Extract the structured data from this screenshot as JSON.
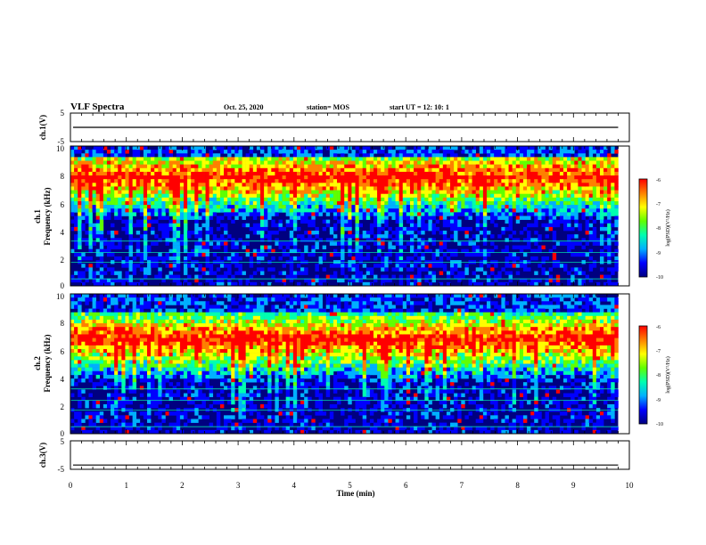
{
  "header": {
    "title": "VLF Spectra",
    "date": "Oct. 25, 2020",
    "station": "station= MOS",
    "start": "start  UT  =   12: 10: 1"
  },
  "chart_data": [
    {
      "type": "line",
      "ylabel": "ch.1(V)",
      "ylim": [
        -5,
        5
      ],
      "yticks": [
        "5",
        "-5"
      ],
      "x": [
        0,
        9.8
      ],
      "values": [
        0,
        0
      ]
    },
    {
      "type": "heatmap",
      "ylabel_line1": "ch.1",
      "ylabel_line2": "Frequency (kHz)",
      "ylim": [
        0,
        10
      ],
      "yticks": [
        "0",
        "2",
        "4",
        "6",
        "8",
        "10"
      ],
      "xlim": [
        0,
        9.8
      ],
      "colorbar": {
        "label": "log(PSD)(V²/Hz)",
        "range": [
          -10,
          -6
        ],
        "ticks": [
          "-6",
          "-7",
          "-8",
          "-9",
          "-10"
        ]
      }
    },
    {
      "type": "heatmap",
      "ylabel_line1": "ch.2",
      "ylabel_line2": "Frequency (kHz)",
      "ylim": [
        0,
        10
      ],
      "yticks": [
        "0",
        "2",
        "4",
        "6",
        "8",
        "10"
      ],
      "xlim": [
        0,
        9.8
      ],
      "colorbar": {
        "label": "log(PSD)(V²/Hz)",
        "range": [
          -10,
          -6
        ],
        "ticks": [
          "-6",
          "-7",
          "-8",
          "-9",
          "-10"
        ]
      }
    },
    {
      "type": "line",
      "ylabel": "ch.3(V)",
      "ylim": [
        -5,
        5
      ],
      "yticks": [
        "5",
        "-5"
      ],
      "x": [
        0,
        9.8
      ],
      "values": [
        -3.5,
        -3.5
      ]
    }
  ],
  "xaxis": {
    "label": "Time  (min)",
    "xlim": [
      0,
      10
    ],
    "ticks": [
      "0",
      "1",
      "2",
      "3",
      "4",
      "5",
      "6",
      "7",
      "8",
      "9",
      "10"
    ]
  },
  "colors": {
    "colormap": [
      "#000080",
      "#0000ff",
      "#00b0ff",
      "#00ffb0",
      "#60ff00",
      "#ffff00",
      "#ff8000",
      "#ff0000",
      "#ffffff"
    ]
  }
}
